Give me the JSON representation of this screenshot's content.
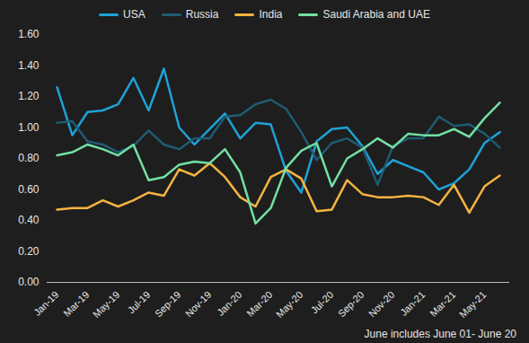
{
  "chart_data": {
    "type": "line",
    "caption": "June includes June 01- June 20",
    "legend": "top",
    "grid": false,
    "categories": [
      "Jan-19",
      null,
      "Mar-19",
      null,
      "May-19",
      null,
      "Jul-19",
      null,
      "Sep-19",
      null,
      "Nov-19",
      null,
      "Jan-20",
      null,
      "Mar-20",
      null,
      "May-20",
      null,
      "Jul-20",
      null,
      "Sep-20",
      null,
      "Nov-20",
      null,
      "Jan-21",
      null,
      "Mar-21",
      null,
      "May-21",
      null
    ],
    "ylim": [
      0,
      1.6
    ],
    "yticks": [
      {
        "value": 0,
        "label": "0.00"
      },
      {
        "value": 0.2,
        "label": "0.20"
      },
      {
        "value": 0.4,
        "label": "0.40"
      },
      {
        "value": 0.6,
        "label": "0.60"
      },
      {
        "value": 0.8,
        "label": "0.80"
      },
      {
        "value": 1.0,
        "label": "1.00"
      },
      {
        "value": 1.2,
        "label": "1.20"
      },
      {
        "value": 1.4,
        "label": "1.40"
      },
      {
        "value": 1.6,
        "label": "1.60"
      }
    ],
    "series": [
      {
        "name": "USA",
        "color": "#1ea2d6",
        "values": [
          1.26,
          0.95,
          1.1,
          1.11,
          1.15,
          1.32,
          1.11,
          1.38,
          1.0,
          0.89,
          0.99,
          1.09,
          0.93,
          1.03,
          1.02,
          0.72,
          0.58,
          0.91,
          0.99,
          1.0,
          0.88,
          0.7,
          0.79,
          0.75,
          0.71,
          0.6,
          0.64,
          0.73,
          0.9,
          0.97
        ]
      },
      {
        "name": "Russia",
        "color": "#1f5b74",
        "values": [
          1.03,
          1.04,
          0.91,
          0.89,
          0.84,
          0.88,
          0.98,
          0.89,
          0.86,
          0.93,
          0.93,
          1.07,
          1.08,
          1.15,
          1.18,
          1.12,
          0.97,
          0.79,
          0.9,
          0.93,
          0.87,
          0.63,
          0.88,
          0.93,
          0.93,
          1.07,
          1.01,
          1.02,
          0.96,
          0.87
        ]
      },
      {
        "name": "India",
        "color": "#f5b440",
        "values": [
          0.47,
          0.48,
          0.48,
          0.53,
          0.49,
          0.53,
          0.58,
          0.56,
          0.73,
          0.69,
          0.77,
          0.68,
          0.55,
          0.49,
          0.68,
          0.73,
          0.67,
          0.46,
          0.47,
          0.66,
          0.57,
          0.55,
          0.55,
          0.56,
          0.55,
          0.5,
          0.63,
          0.45,
          0.62,
          0.69
        ]
      },
      {
        "name": "Saudi Arabia and UAE",
        "color": "#72e0a4",
        "values": [
          0.82,
          0.84,
          0.89,
          0.86,
          0.82,
          0.89,
          0.66,
          0.68,
          0.76,
          0.78,
          0.77,
          0.86,
          0.71,
          0.38,
          0.48,
          0.74,
          0.85,
          0.9,
          0.62,
          0.8,
          0.86,
          0.93,
          0.87,
          0.96,
          0.95,
          0.95,
          0.99,
          0.94,
          1.06,
          1.16
        ]
      }
    ]
  }
}
